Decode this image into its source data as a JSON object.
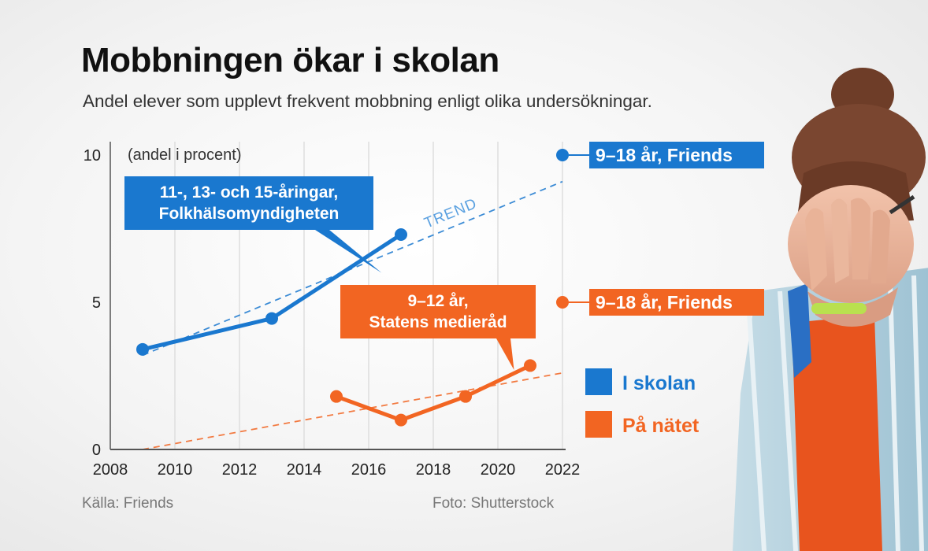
{
  "title": "Mobbningen ökar i skolan",
  "subtitle": "Andel elever som upplevt frekvent mobbning enligt olika undersökningar.",
  "source": "Källa: Friends",
  "photo_credit": "Foto: Shutterstock",
  "colors": {
    "school": "#1a78cf",
    "online": "#f26522",
    "grid": "#dedede"
  },
  "chart_data": {
    "type": "line",
    "unit_label": "(andel i procent)",
    "xlim": [
      2008,
      2022
    ],
    "ylim": [
      0,
      10
    ],
    "x_ticks": [
      2008,
      2010,
      2012,
      2014,
      2016,
      2018,
      2020,
      2022
    ],
    "y_ticks": [
      0,
      5,
      10
    ],
    "grid": "vertical",
    "series": [
      {
        "key": "school",
        "callout": [
          "11-, 13- och 15-åringar,",
          "Folkhälsomyndigheten"
        ],
        "points": [
          [
            2009,
            3.4
          ],
          [
            2013,
            4.45
          ],
          [
            2017,
            7.3
          ]
        ]
      },
      {
        "key": "online",
        "callout": [
          "9–12 år,",
          "Statens medieråd"
        ],
        "points": [
          [
            2015,
            1.8
          ],
          [
            2017,
            1.0
          ],
          [
            2019,
            1.8
          ],
          [
            2021,
            2.85
          ]
        ]
      }
    ],
    "points_friends": [
      {
        "key": "school",
        "x": 2022,
        "y": 10,
        "label": "9–18 år, Friends"
      },
      {
        "key": "online",
        "x": 2022,
        "y": 5,
        "label": "9–18 år, Friends"
      }
    ],
    "trends": [
      {
        "key": "school",
        "from": [
          2009,
          3.2
        ],
        "to": [
          2022,
          9.1
        ],
        "label": "TREND"
      },
      {
        "key": "online",
        "from": [
          2009,
          0
        ],
        "to": [
          2022,
          2.6
        ]
      }
    ],
    "legend": [
      {
        "key": "school",
        "label": "I skolan"
      },
      {
        "key": "online",
        "label": "På nätet"
      }
    ]
  }
}
